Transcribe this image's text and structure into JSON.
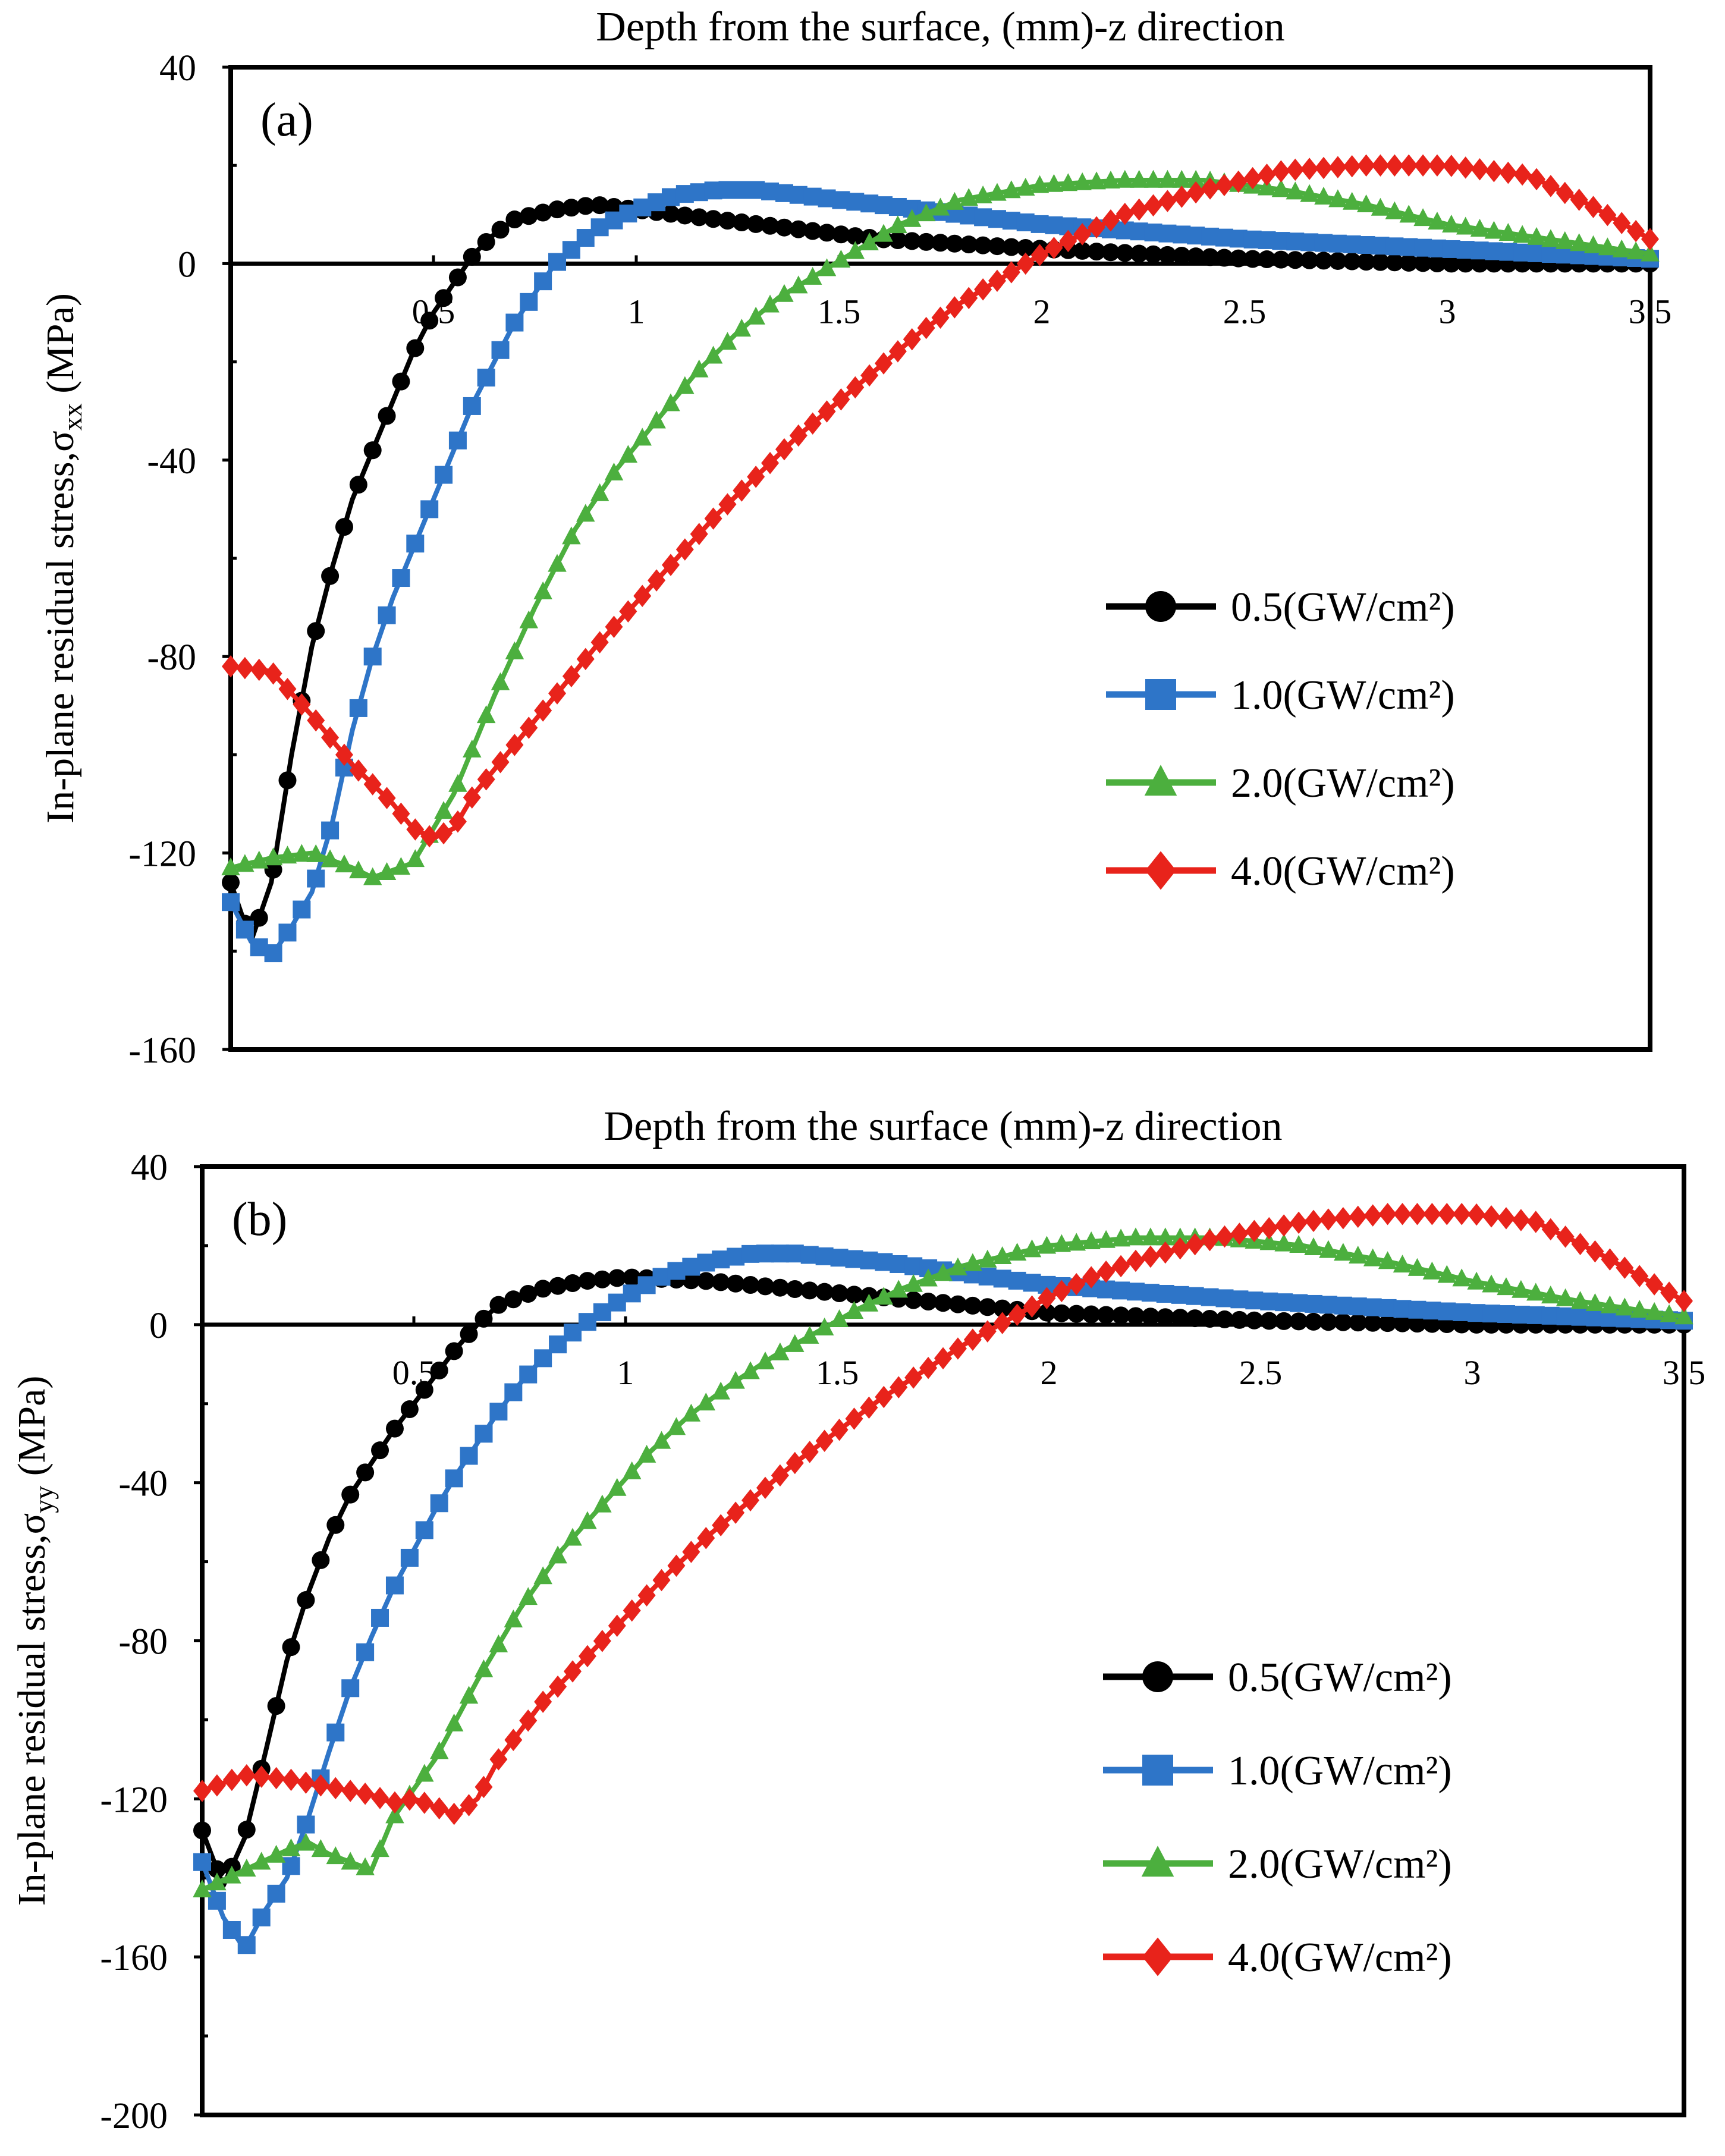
{
  "chart_data": [
    {
      "panel_label": "(a)",
      "type": "line",
      "title": "Depth from the surface, (mm)-z direction",
      "xlabel": "Depth from the surface, (mm)-z direction",
      "ylabel_main": "In-plane residual stress,σ",
      "ylabel_sub": "xx",
      "ylabel_unit": " (MPa)",
      "xlim": [
        0,
        3.5
      ],
      "ylim": [
        -160,
        40
      ],
      "xticks": [
        0.5,
        1,
        1.5,
        2,
        2.5,
        3,
        3.5
      ],
      "xtick_labels": [
        "0.5",
        "1",
        "1.5",
        "2",
        "2.5",
        "3",
        "3.5"
      ],
      "yticks": [
        40,
        0,
        -40,
        -80,
        -120,
        -160
      ],
      "ytick_labels": [
        "40",
        "0",
        "-40",
        "-80",
        "-120",
        "-160"
      ],
      "legend_position": "center-right",
      "series": [
        {
          "name": "0.5(GW/cm²)",
          "color": "#000000",
          "marker": "circle",
          "points": [
            [
              0,
              -126
            ],
            [
              0.05,
              -138
            ],
            [
              0.1,
              -126
            ],
            [
              0.15,
              -100
            ],
            [
              0.2,
              -78
            ],
            [
              0.25,
              -62
            ],
            [
              0.3,
              -48
            ],
            [
              0.35,
              -38
            ],
            [
              0.4,
              -28
            ],
            [
              0.45,
              -18
            ],
            [
              0.5,
              -10
            ],
            [
              0.55,
              -4
            ],
            [
              0.6,
              2
            ],
            [
              0.65,
              6
            ],
            [
              0.7,
              9
            ],
            [
              0.8,
              11
            ],
            [
              0.9,
              12
            ],
            [
              1.0,
              11
            ],
            [
              1.2,
              9
            ],
            [
              1.4,
              7
            ],
            [
              1.6,
              5
            ],
            [
              1.8,
              4
            ],
            [
              2.0,
              3
            ],
            [
              2.5,
              1
            ],
            [
              3.0,
              0
            ],
            [
              3.5,
              0
            ]
          ]
        },
        {
          "name": "1.0(GW/cm²)",
          "color": "#2e75c8",
          "marker": "square",
          "points": [
            [
              0,
              -130
            ],
            [
              0.05,
              -138
            ],
            [
              0.1,
              -141
            ],
            [
              0.15,
              -135
            ],
            [
              0.2,
              -128
            ],
            [
              0.25,
              -114
            ],
            [
              0.3,
              -95
            ],
            [
              0.35,
              -80
            ],
            [
              0.4,
              -68
            ],
            [
              0.45,
              -58
            ],
            [
              0.5,
              -48
            ],
            [
              0.55,
              -38
            ],
            [
              0.6,
              -28
            ],
            [
              0.65,
              -20
            ],
            [
              0.7,
              -12
            ],
            [
              0.75,
              -6
            ],
            [
              0.8,
              0
            ],
            [
              0.9,
              7
            ],
            [
              1.0,
              11
            ],
            [
              1.1,
              14
            ],
            [
              1.2,
              15
            ],
            [
              1.3,
              15
            ],
            [
              1.5,
              13
            ],
            [
              1.8,
              10
            ],
            [
              2.0,
              8
            ],
            [
              2.5,
              5
            ],
            [
              3.0,
              3
            ],
            [
              3.5,
              1
            ]
          ]
        },
        {
          "name": "2.0(GW/cm²)",
          "color": "#4caf3e",
          "marker": "triangle",
          "points": [
            [
              0,
              -123
            ],
            [
              0.1,
              -121
            ],
            [
              0.2,
              -120
            ],
            [
              0.3,
              -123
            ],
            [
              0.35,
              -125
            ],
            [
              0.45,
              -122
            ],
            [
              0.55,
              -108
            ],
            [
              0.65,
              -88
            ],
            [
              0.75,
              -70
            ],
            [
              0.85,
              -54
            ],
            [
              0.95,
              -42
            ],
            [
              1.05,
              -32
            ],
            [
              1.15,
              -22
            ],
            [
              1.25,
              -14
            ],
            [
              1.35,
              -7
            ],
            [
              1.45,
              -2
            ],
            [
              1.55,
              3
            ],
            [
              1.65,
              8
            ],
            [
              1.8,
              13
            ],
            [
              2.0,
              16
            ],
            [
              2.2,
              17
            ],
            [
              2.4,
              17
            ],
            [
              2.6,
              15
            ],
            [
              2.8,
              12
            ],
            [
              3.0,
              8
            ],
            [
              3.25,
              5
            ],
            [
              3.5,
              2
            ]
          ]
        },
        {
          "name": "4.0(GW/cm²)",
          "color": "#e8231b",
          "marker": "diamond",
          "points": [
            [
              0,
              -82
            ],
            [
              0.1,
              -83
            ],
            [
              0.2,
              -92
            ],
            [
              0.3,
              -102
            ],
            [
              0.4,
              -110
            ],
            [
              0.45,
              -115
            ],
            [
              0.5,
              -117
            ],
            [
              0.55,
              -115
            ],
            [
              0.6,
              -108
            ],
            [
              0.7,
              -98
            ],
            [
              0.8,
              -88
            ],
            [
              0.9,
              -78
            ],
            [
              1.0,
              -69
            ],
            [
              1.1,
              -60
            ],
            [
              1.2,
              -51
            ],
            [
              1.3,
              -43
            ],
            [
              1.4,
              -35
            ],
            [
              1.5,
              -28
            ],
            [
              1.6,
              -21
            ],
            [
              1.7,
              -14
            ],
            [
              1.8,
              -8
            ],
            [
              1.9,
              -3
            ],
            [
              2.0,
              2
            ],
            [
              2.2,
              10
            ],
            [
              2.4,
              15
            ],
            [
              2.6,
              19
            ],
            [
              2.8,
              20
            ],
            [
              3.0,
              20
            ],
            [
              3.2,
              18
            ],
            [
              3.35,
              12
            ],
            [
              3.5,
              5
            ]
          ]
        }
      ]
    },
    {
      "panel_label": "(b)",
      "type": "line",
      "title": "Depth from the surface (mm)-z direction",
      "xlabel": "Depth from the surface (mm)-z direction",
      "ylabel_main": "In-plane residual stress,σ",
      "ylabel_sub": "yy",
      "ylabel_unit": " (MPa)",
      "xlim": [
        0,
        3.5
      ],
      "ylim": [
        -200,
        40
      ],
      "xticks": [
        0.5,
        1,
        1.5,
        2,
        2.5,
        3,
        3.5
      ],
      "xtick_labels": [
        "0.5",
        "1",
        "1.5",
        "2",
        "2.5",
        "3",
        "3.5"
      ],
      "yticks": [
        40,
        0,
        -40,
        -80,
        -120,
        -160,
        -200
      ],
      "ytick_labels": [
        "40",
        "0",
        "-40",
        "-80",
        "-120",
        "-160",
        "-200"
      ],
      "legend_position": "center-right",
      "series": [
        {
          "name": "0.5(GW/cm²)",
          "color": "#000000",
          "marker": "circle",
          "points": [
            [
              0,
              -128
            ],
            [
              0.05,
              -142
            ],
            [
              0.1,
              -130
            ],
            [
              0.15,
              -108
            ],
            [
              0.2,
              -85
            ],
            [
              0.25,
              -68
            ],
            [
              0.3,
              -54
            ],
            [
              0.35,
              -43
            ],
            [
              0.4,
              -35
            ],
            [
              0.45,
              -27
            ],
            [
              0.5,
              -20
            ],
            [
              0.55,
              -13
            ],
            [
              0.6,
              -6
            ],
            [
              0.65,
              0
            ],
            [
              0.7,
              5
            ],
            [
              0.8,
              9
            ],
            [
              0.9,
              11
            ],
            [
              1.0,
              12
            ],
            [
              1.2,
              11
            ],
            [
              1.4,
              9
            ],
            [
              1.6,
              7
            ],
            [
              1.8,
              5
            ],
            [
              2.0,
              3
            ],
            [
              2.5,
              1
            ],
            [
              3.0,
              0
            ],
            [
              3.5,
              0
            ]
          ]
        },
        {
          "name": "1.0(GW/cm²)",
          "color": "#2e75c8",
          "marker": "square",
          "points": [
            [
              0,
              -136
            ],
            [
              0.05,
              -150
            ],
            [
              0.1,
              -158
            ],
            [
              0.15,
              -148
            ],
            [
              0.2,
              -140
            ],
            [
              0.25,
              -125
            ],
            [
              0.3,
              -108
            ],
            [
              0.35,
              -92
            ],
            [
              0.4,
              -79
            ],
            [
              0.45,
              -67
            ],
            [
              0.5,
              -57
            ],
            [
              0.55,
              -47
            ],
            [
              0.6,
              -38
            ],
            [
              0.65,
              -30
            ],
            [
              0.7,
              -22
            ],
            [
              0.75,
              -15
            ],
            [
              0.8,
              -9
            ],
            [
              0.85,
              -4
            ],
            [
              0.9,
              0
            ],
            [
              1.0,
              7
            ],
            [
              1.1,
              13
            ],
            [
              1.2,
              16
            ],
            [
              1.3,
              18
            ],
            [
              1.4,
              18
            ],
            [
              1.6,
              16
            ],
            [
              1.8,
              13
            ],
            [
              2.0,
              10
            ],
            [
              2.5,
              6
            ],
            [
              3.0,
              3
            ],
            [
              3.5,
              1
            ]
          ]
        },
        {
          "name": "2.0(GW/cm²)",
          "color": "#4caf3e",
          "marker": "triangle",
          "points": [
            [
              0,
              -143
            ],
            [
              0.1,
              -138
            ],
            [
              0.2,
              -133
            ],
            [
              0.25,
              -131
            ],
            [
              0.3,
              -134
            ],
            [
              0.4,
              -138
            ],
            [
              0.45,
              -125
            ],
            [
              0.55,
              -110
            ],
            [
              0.65,
              -90
            ],
            [
              0.75,
              -72
            ],
            [
              0.85,
              -57
            ],
            [
              0.95,
              -45
            ],
            [
              1.05,
              -33
            ],
            [
              1.15,
              -23
            ],
            [
              1.25,
              -15
            ],
            [
              1.35,
              -8
            ],
            [
              1.45,
              -2
            ],
            [
              1.55,
              4
            ],
            [
              1.65,
              9
            ],
            [
              1.8,
              15
            ],
            [
              2.0,
              20
            ],
            [
              2.2,
              22
            ],
            [
              2.4,
              22
            ],
            [
              2.6,
              20
            ],
            [
              2.8,
              16
            ],
            [
              3.0,
              11
            ],
            [
              3.25,
              6
            ],
            [
              3.5,
              2
            ]
          ]
        },
        {
          "name": "4.0(GW/cm²)",
          "color": "#e8231b",
          "marker": "diamond",
          "points": [
            [
              0,
              -118
            ],
            [
              0.1,
              -114
            ],
            [
              0.2,
              -115
            ],
            [
              0.3,
              -117
            ],
            [
              0.4,
              -119
            ],
            [
              0.45,
              -121
            ],
            [
              0.5,
              -120
            ],
            [
              0.55,
              -122
            ],
            [
              0.6,
              -124
            ],
            [
              0.65,
              -120
            ],
            [
              0.7,
              -110
            ],
            [
              0.8,
              -96
            ],
            [
              0.9,
              -85
            ],
            [
              1.0,
              -74
            ],
            [
              1.1,
              -63
            ],
            [
              1.2,
              -53
            ],
            [
              1.3,
              -44
            ],
            [
              1.4,
              -35
            ],
            [
              1.5,
              -27
            ],
            [
              1.6,
              -19
            ],
            [
              1.7,
              -12
            ],
            [
              1.8,
              -5
            ],
            [
              1.9,
              1
            ],
            [
              2.0,
              7
            ],
            [
              2.1,
              12
            ],
            [
              2.2,
              16
            ],
            [
              2.4,
              22
            ],
            [
              2.6,
              26
            ],
            [
              2.8,
              28
            ],
            [
              3.0,
              28
            ],
            [
              3.15,
              26
            ],
            [
              3.3,
              18
            ],
            [
              3.5,
              6
            ]
          ]
        }
      ]
    }
  ]
}
